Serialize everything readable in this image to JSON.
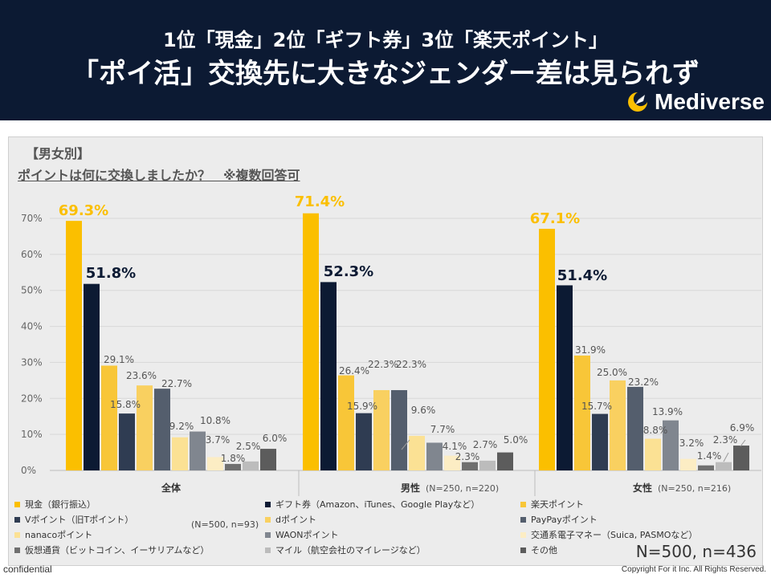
{
  "header": {
    "title_line1": "1位「現金」2位「ギフト券」3位「楽天ポイント」",
    "title_line2": "「ポイ活」交換先に大きなジェンダー差は見られず",
    "logo_text": "Mediverse"
  },
  "section_label": "【男女別】",
  "question": "ポイントは何に交換しましたか？　※複数回答可",
  "notes": {
    "subsample": "(N=500, n=93)",
    "total": "N=500, n=436"
  },
  "footer": {
    "left": "confidential",
    "right": "Copyright For it Inc. All Rights Reserved."
  },
  "chart_data": {
    "type": "bar",
    "title": "ポイントは何に交換しましたか？　※複数回答可",
    "ylim": [
      0,
      70
    ],
    "yticks": [
      "0%",
      "10%",
      "20%",
      "30%",
      "40%",
      "50%",
      "60%",
      "70%"
    ],
    "grid": true,
    "categories": [
      {
        "label": "全体",
        "sub": ""
      },
      {
        "label": "男性",
        "sub": "(N=250, n=220)"
      },
      {
        "label": "女性",
        "sub": "(N=250, n=216)"
      }
    ],
    "series": [
      {
        "name": "現金（銀行振込）",
        "color": "#fbbf00",
        "values": [
          69.3,
          71.4,
          67.1
        ],
        "labels": [
          "69.3%",
          "71.4%",
          "67.1%"
        ]
      },
      {
        "name": "ギフト券（Amazon、iTunes、Google Playなど）",
        "color": "#0c1a33",
        "values": [
          51.8,
          52.3,
          51.4
        ],
        "labels": [
          "51.8%",
          "52.3%",
          "51.4%"
        ]
      },
      {
        "name": "楽天ポイント",
        "color": "#f8c638",
        "values": [
          29.1,
          26.4,
          31.9
        ],
        "labels": [
          "29.1%",
          "26.4%",
          "31.9%"
        ]
      },
      {
        "name": "Vポイント（旧Tポイント）",
        "color": "#2f3c52",
        "values": [
          15.8,
          15.9,
          15.7
        ],
        "labels": [
          "15.8%",
          "15.9%",
          "15.7%"
        ]
      },
      {
        "name": "dポイント",
        "color": "#f9d060",
        "values": [
          23.6,
          22.3,
          25.0
        ],
        "labels": [
          "23.6%",
          "22.3%",
          "25.0%"
        ]
      },
      {
        "name": "PayPayポイント",
        "color": "#545e6d",
        "values": [
          22.7,
          22.3,
          23.2
        ],
        "labels": [
          "22.7%",
          "22.3%",
          "23.2%"
        ]
      },
      {
        "name": "nanacoポイント",
        "color": "#fbe194",
        "values": [
          9.2,
          9.6,
          8.8
        ],
        "labels": [
          "9.2%",
          "9.6%",
          "8.8%"
        ]
      },
      {
        "name": "WAONポイント",
        "color": "#80868f",
        "values": [
          10.8,
          7.7,
          13.9
        ],
        "labels": [
          "10.8%",
          "7.7%",
          "13.9%"
        ]
      },
      {
        "name": "交通系電子マネー（Suica, PASMOなど）",
        "color": "#fcedc4",
        "values": [
          3.7,
          4.1,
          3.2
        ],
        "labels": [
          "3.7%",
          "4.1%",
          "3.2%"
        ]
      },
      {
        "name": "仮想通貨（ビットコイン、イーサリアムなど）",
        "color": "#6f6f6f",
        "values": [
          1.8,
          2.3,
          1.4
        ],
        "labels": [
          "1.8%",
          "2.3%",
          "1.4%"
        ]
      },
      {
        "name": "マイル（航空会社のマイレージなど）",
        "color": "#bcbcbc",
        "values": [
          2.5,
          2.7,
          2.3
        ],
        "labels": [
          "2.5%",
          "2.7%",
          "2.3%"
        ]
      },
      {
        "name": "その他",
        "color": "#5c5c5c",
        "values": [
          6.0,
          5.0,
          6.9
        ],
        "labels": [
          "6.0%",
          "5.0%",
          "6.9%"
        ]
      }
    ]
  }
}
